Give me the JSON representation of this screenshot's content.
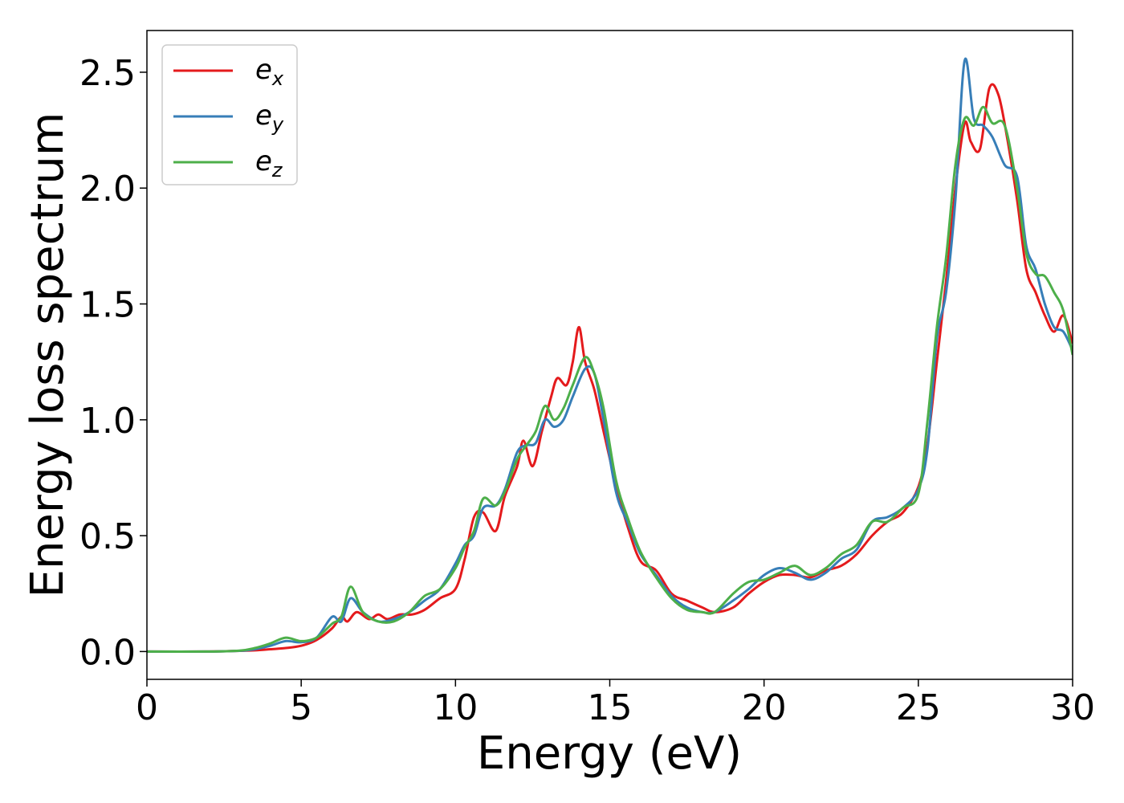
{
  "chart_data": {
    "type": "line",
    "xlabel": "Energy (eV)",
    "ylabel": "Energy loss spectrum",
    "xlim": [
      0,
      30
    ],
    "ylim": [
      -0.12,
      2.68
    ],
    "x_ticks": [
      "0",
      "5",
      "10",
      "15",
      "20",
      "25",
      "30"
    ],
    "y_ticks": [
      "0.0",
      "0.5",
      "1.0",
      "1.5",
      "2.0",
      "2.5"
    ],
    "grid": false,
    "legend_position": "top-left",
    "series": [
      {
        "name": "e",
        "subscript": "x",
        "color": "#e41a1c",
        "points": [
          [
            0,
            0
          ],
          [
            2,
            0
          ],
          [
            3,
            0.003
          ],
          [
            3.5,
            0.005
          ],
          [
            4,
            0.01
          ],
          [
            4.5,
            0.015
          ],
          [
            5,
            0.025
          ],
          [
            5.5,
            0.05
          ],
          [
            6,
            0.1
          ],
          [
            6.3,
            0.15
          ],
          [
            6.5,
            0.13
          ],
          [
            6.8,
            0.17
          ],
          [
            7.2,
            0.14
          ],
          [
            7.5,
            0.16
          ],
          [
            7.8,
            0.14
          ],
          [
            8.2,
            0.16
          ],
          [
            8.6,
            0.16
          ],
          [
            9,
            0.18
          ],
          [
            9.5,
            0.23
          ],
          [
            10,
            0.27
          ],
          [
            10.3,
            0.4
          ],
          [
            10.6,
            0.58
          ],
          [
            10.9,
            0.6
          ],
          [
            11.3,
            0.52
          ],
          [
            11.6,
            0.67
          ],
          [
            12,
            0.8
          ],
          [
            12.2,
            0.91
          ],
          [
            12.5,
            0.8
          ],
          [
            12.8,
            0.95
          ],
          [
            13.1,
            1.1
          ],
          [
            13.3,
            1.18
          ],
          [
            13.6,
            1.15
          ],
          [
            13.8,
            1.25
          ],
          [
            14,
            1.4
          ],
          [
            14.2,
            1.25
          ],
          [
            14.5,
            1.13
          ],
          [
            14.8,
            0.95
          ],
          [
            15.2,
            0.72
          ],
          [
            15.6,
            0.53
          ],
          [
            16,
            0.39
          ],
          [
            16.5,
            0.35
          ],
          [
            17,
            0.25
          ],
          [
            17.5,
            0.22
          ],
          [
            18,
            0.19
          ],
          [
            18.4,
            0.17
          ],
          [
            19,
            0.19
          ],
          [
            19.5,
            0.25
          ],
          [
            20,
            0.3
          ],
          [
            20.5,
            0.33
          ],
          [
            21,
            0.33
          ],
          [
            21.5,
            0.32
          ],
          [
            22,
            0.35
          ],
          [
            22.5,
            0.37
          ],
          [
            23,
            0.42
          ],
          [
            23.5,
            0.5
          ],
          [
            24,
            0.56
          ],
          [
            24.5,
            0.6
          ],
          [
            25,
            0.71
          ],
          [
            25.3,
            0.9
          ],
          [
            25.6,
            1.25
          ],
          [
            25.9,
            1.6
          ],
          [
            26.2,
            2.0
          ],
          [
            26.5,
            2.28
          ],
          [
            26.7,
            2.2
          ],
          [
            27,
            2.17
          ],
          [
            27.3,
            2.43
          ],
          [
            27.6,
            2.4
          ],
          [
            27.9,
            2.2
          ],
          [
            28.2,
            1.95
          ],
          [
            28.5,
            1.65
          ],
          [
            28.8,
            1.55
          ],
          [
            29.1,
            1.45
          ],
          [
            29.4,
            1.38
          ],
          [
            29.7,
            1.45
          ],
          [
            30,
            1.33
          ]
        ]
      },
      {
        "name": "e",
        "subscript": "y",
        "color": "#377eb8",
        "points": [
          [
            0,
            0
          ],
          [
            2,
            0
          ],
          [
            3,
            0.003
          ],
          [
            3.5,
            0.01
          ],
          [
            4,
            0.025
          ],
          [
            4.5,
            0.045
          ],
          [
            5,
            0.04
          ],
          [
            5.5,
            0.06
          ],
          [
            6,
            0.15
          ],
          [
            6.3,
            0.13
          ],
          [
            6.6,
            0.23
          ],
          [
            7,
            0.17
          ],
          [
            7.5,
            0.13
          ],
          [
            8,
            0.14
          ],
          [
            8.5,
            0.17
          ],
          [
            9,
            0.22
          ],
          [
            9.5,
            0.27
          ],
          [
            10,
            0.38
          ],
          [
            10.3,
            0.46
          ],
          [
            10.6,
            0.5
          ],
          [
            10.9,
            0.62
          ],
          [
            11.3,
            0.63
          ],
          [
            11.6,
            0.7
          ],
          [
            12,
            0.86
          ],
          [
            12.3,
            0.89
          ],
          [
            12.6,
            0.9
          ],
          [
            12.9,
            1.0
          ],
          [
            13.2,
            0.97
          ],
          [
            13.5,
            1.0
          ],
          [
            13.8,
            1.1
          ],
          [
            14.2,
            1.22
          ],
          [
            14.5,
            1.2
          ],
          [
            14.8,
            1.0
          ],
          [
            15.2,
            0.69
          ],
          [
            15.6,
            0.55
          ],
          [
            16,
            0.42
          ],
          [
            16.5,
            0.33
          ],
          [
            17,
            0.24
          ],
          [
            17.5,
            0.19
          ],
          [
            18,
            0.17
          ],
          [
            18.4,
            0.17
          ],
          [
            19,
            0.22
          ],
          [
            19.5,
            0.27
          ],
          [
            20,
            0.33
          ],
          [
            20.5,
            0.36
          ],
          [
            21,
            0.34
          ],
          [
            21.5,
            0.31
          ],
          [
            22,
            0.34
          ],
          [
            22.5,
            0.4
          ],
          [
            23,
            0.44
          ],
          [
            23.5,
            0.56
          ],
          [
            24,
            0.58
          ],
          [
            24.5,
            0.62
          ],
          [
            25,
            0.7
          ],
          [
            25.3,
            0.88
          ],
          [
            25.6,
            1.35
          ],
          [
            25.9,
            1.55
          ],
          [
            26.2,
            1.95
          ],
          [
            26.5,
            2.55
          ],
          [
            26.8,
            2.3
          ],
          [
            27.1,
            2.27
          ],
          [
            27.4,
            2.22
          ],
          [
            27.8,
            2.1
          ],
          [
            28.2,
            2.05
          ],
          [
            28.5,
            1.75
          ],
          [
            28.8,
            1.65
          ],
          [
            29.1,
            1.5
          ],
          [
            29.4,
            1.4
          ],
          [
            29.7,
            1.38
          ],
          [
            30,
            1.3
          ]
        ]
      },
      {
        "name": "e",
        "subscript": "z",
        "color": "#4daf4a",
        "points": [
          [
            0,
            0
          ],
          [
            2,
            0
          ],
          [
            3,
            0.004
          ],
          [
            3.5,
            0.015
          ],
          [
            4,
            0.035
          ],
          [
            4.5,
            0.06
          ],
          [
            5,
            0.045
          ],
          [
            5.5,
            0.06
          ],
          [
            6,
            0.12
          ],
          [
            6.3,
            0.15
          ],
          [
            6.6,
            0.28
          ],
          [
            7,
            0.17
          ],
          [
            7.5,
            0.13
          ],
          [
            8,
            0.13
          ],
          [
            8.5,
            0.17
          ],
          [
            9,
            0.24
          ],
          [
            9.5,
            0.27
          ],
          [
            10,
            0.36
          ],
          [
            10.3,
            0.45
          ],
          [
            10.6,
            0.52
          ],
          [
            10.9,
            0.66
          ],
          [
            11.3,
            0.63
          ],
          [
            11.6,
            0.69
          ],
          [
            12,
            0.83
          ],
          [
            12.3,
            0.89
          ],
          [
            12.6,
            0.95
          ],
          [
            12.9,
            1.06
          ],
          [
            13.2,
            1.0
          ],
          [
            13.5,
            1.05
          ],
          [
            13.8,
            1.15
          ],
          [
            14.2,
            1.27
          ],
          [
            14.5,
            1.2
          ],
          [
            14.8,
            1.05
          ],
          [
            15.2,
            0.74
          ],
          [
            15.6,
            0.57
          ],
          [
            16,
            0.43
          ],
          [
            16.5,
            0.32
          ],
          [
            17,
            0.23
          ],
          [
            17.5,
            0.18
          ],
          [
            18,
            0.17
          ],
          [
            18.4,
            0.17
          ],
          [
            19,
            0.25
          ],
          [
            19.5,
            0.3
          ],
          [
            20,
            0.31
          ],
          [
            20.5,
            0.34
          ],
          [
            21,
            0.37
          ],
          [
            21.5,
            0.33
          ],
          [
            22,
            0.36
          ],
          [
            22.5,
            0.42
          ],
          [
            23,
            0.46
          ],
          [
            23.5,
            0.56
          ],
          [
            24,
            0.56
          ],
          [
            24.5,
            0.62
          ],
          [
            25,
            0.68
          ],
          [
            25.3,
            1.0
          ],
          [
            25.6,
            1.4
          ],
          [
            25.9,
            1.7
          ],
          [
            26.2,
            2.1
          ],
          [
            26.5,
            2.3
          ],
          [
            26.8,
            2.27
          ],
          [
            27.1,
            2.35
          ],
          [
            27.4,
            2.28
          ],
          [
            27.8,
            2.27
          ],
          [
            28.2,
            2.0
          ],
          [
            28.5,
            1.72
          ],
          [
            28.8,
            1.63
          ],
          [
            29.1,
            1.62
          ],
          [
            29.4,
            1.55
          ],
          [
            29.7,
            1.47
          ],
          [
            30,
            1.28
          ]
        ]
      }
    ]
  }
}
